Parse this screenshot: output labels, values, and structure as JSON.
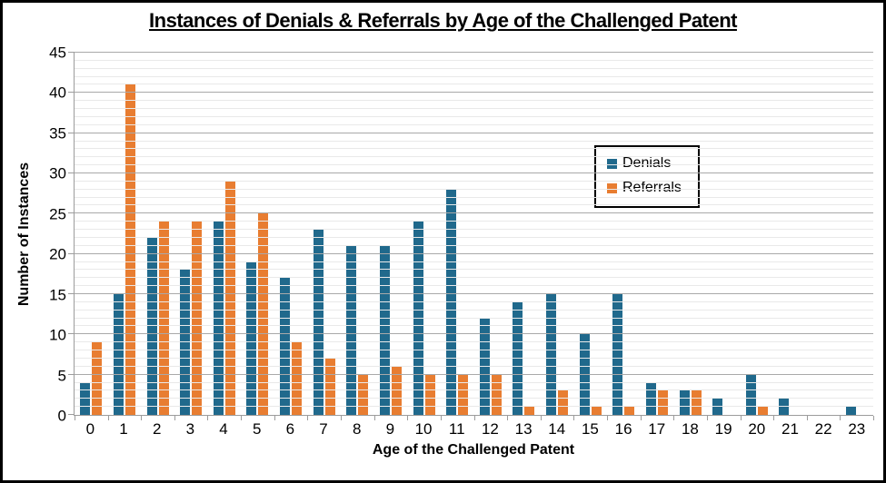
{
  "title": "Instances of Denials & Referrals by Age of the Challenged Patent",
  "chart_data": {
    "type": "bar",
    "title": "Instances of Denials & Referrals by Age of the Challenged Patent",
    "xlabel": "Age of the Challenged Patent",
    "ylabel": "Number of Instances",
    "categories": [
      "0",
      "1",
      "2",
      "3",
      "4",
      "5",
      "6",
      "7",
      "8",
      "9",
      "10",
      "11",
      "12",
      "13",
      "14",
      "15",
      "16",
      "17",
      "18",
      "19",
      "20",
      "21",
      "22",
      "23"
    ],
    "series": [
      {
        "name": "Denials",
        "color": "#20698C",
        "values": [
          4,
          15,
          22,
          18,
          24,
          19,
          17,
          23,
          21,
          21,
          24,
          28,
          12,
          14,
          15,
          10,
          15,
          4,
          3,
          2,
          5,
          2,
          0,
          1
        ]
      },
      {
        "name": "Referrals",
        "color": "#E87D31",
        "values": [
          9,
          41,
          24,
          24,
          29,
          25,
          9,
          7,
          5,
          6,
          5,
          5,
          5,
          1,
          3,
          1,
          1,
          3,
          3,
          0,
          1,
          0,
          0,
          0
        ]
      }
    ],
    "ylim": [
      0,
      45
    ],
    "yticks": [
      0,
      5,
      10,
      15,
      20,
      25,
      30,
      35,
      40,
      45
    ],
    "minor_grid_step": 1,
    "major_grid_step": 5,
    "grid": true,
    "legend_position": "inside-upper-right",
    "colors": {
      "major_grid": "#a9a9a9",
      "minor_grid": "#e9e9e9",
      "axis": "#9c9c9c",
      "frame": "#000000",
      "background": "#ffffff"
    }
  }
}
